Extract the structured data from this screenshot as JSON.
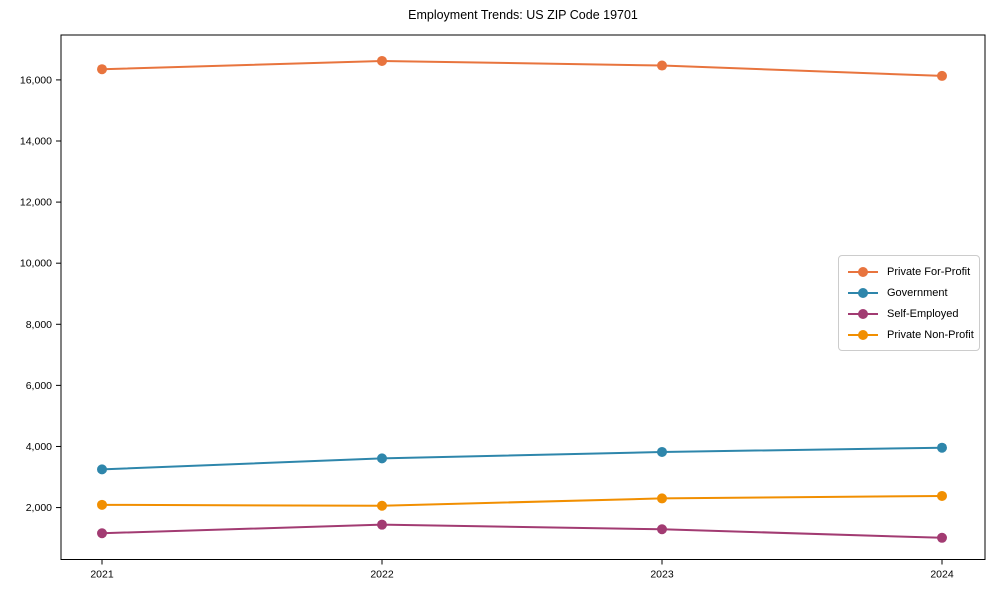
{
  "chart_data": {
    "type": "line",
    "title": "Employment Trends: US ZIP Code 19701",
    "x": [
      "2021",
      "2022",
      "2023",
      "2024"
    ],
    "series": [
      {
        "name": "Private For-Profit",
        "color": "#E8743E",
        "values": [
          16350,
          16620,
          16470,
          16130
        ]
      },
      {
        "name": "Government",
        "color": "#2E86AB",
        "values": [
          3250,
          3610,
          3820,
          3960
        ]
      },
      {
        "name": "Self-Employed",
        "color": "#A23B72",
        "values": [
          1160,
          1440,
          1290,
          1010
        ]
      },
      {
        "name": "Private Non-Profit",
        "color": "#F18F01",
        "values": [
          2090,
          2060,
          2300,
          2380
        ]
      }
    ],
    "xlabel": "",
    "ylabel": "",
    "ylim": [
      300,
      17470
    ],
    "yticks": [
      2000,
      4000,
      6000,
      8000,
      10000,
      12000,
      14000,
      16000
    ],
    "grid": false,
    "legend_position": "center-right",
    "frame_color": "#000000",
    "tick_label_color": "#000000",
    "line_width": 2,
    "marker_radius": 5
  }
}
